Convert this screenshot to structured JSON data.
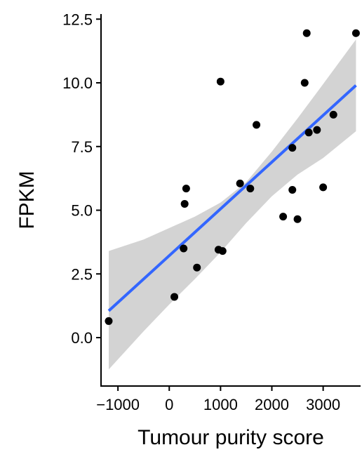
{
  "chart_data": {
    "type": "scatter",
    "title": "",
    "xlabel": "Tumour purity score",
    "ylabel": "FPKM",
    "xlim": [
      -1330,
      3730
    ],
    "ylim": [
      -1.9,
      12.7
    ],
    "x_ticks": [
      -1000,
      0,
      1000,
      2000,
      3000
    ],
    "x_tick_labels": [
      "−1000",
      "0",
      "1000",
      "2000",
      "3000"
    ],
    "y_ticks": [
      0.0,
      2.5,
      5.0,
      7.5,
      10.0,
      12.5
    ],
    "y_tick_labels": [
      "0.0",
      "2.5",
      "5.0",
      "7.5",
      "10.0",
      "12.5"
    ],
    "grid": false,
    "points": [
      {
        "x": -1180,
        "y": 0.65
      },
      {
        "x": 100,
        "y": 1.6
      },
      {
        "x": 280,
        "y": 3.5
      },
      {
        "x": 300,
        "y": 5.25
      },
      {
        "x": 330,
        "y": 5.85
      },
      {
        "x": 540,
        "y": 2.75
      },
      {
        "x": 960,
        "y": 3.45
      },
      {
        "x": 1000,
        "y": 10.05
      },
      {
        "x": 1040,
        "y": 3.4
      },
      {
        "x": 1380,
        "y": 6.05
      },
      {
        "x": 1580,
        "y": 5.85
      },
      {
        "x": 1700,
        "y": 8.35
      },
      {
        "x": 2220,
        "y": 4.75
      },
      {
        "x": 2400,
        "y": 5.8
      },
      {
        "x": 2400,
        "y": 7.45
      },
      {
        "x": 2500,
        "y": 4.65
      },
      {
        "x": 2640,
        "y": 10.0
      },
      {
        "x": 2680,
        "y": 11.95
      },
      {
        "x": 2720,
        "y": 8.05
      },
      {
        "x": 2880,
        "y": 8.15
      },
      {
        "x": 3000,
        "y": 5.9
      },
      {
        "x": 3200,
        "y": 8.75
      },
      {
        "x": 3640,
        "y": 11.95
      }
    ],
    "fit_line": {
      "x": [
        -1180,
        3640
      ],
      "y": [
        1.05,
        9.9
      ]
    },
    "confidence_band": {
      "x": [
        -1180,
        -500,
        0,
        500,
        1000,
        1500,
        2000,
        2500,
        3000,
        3640
      ],
      "lower": [
        -1.25,
        0.25,
        1.3,
        2.3,
        3.35,
        4.5,
        5.55,
        6.4,
        7.05,
        8.1
      ],
      "upper": [
        3.4,
        3.85,
        4.3,
        4.75,
        5.3,
        6.1,
        7.3,
        8.6,
        9.95,
        11.7
      ]
    },
    "colors": {
      "points": "#000000",
      "fit_line": "#3366FF",
      "band": "#D3D3D3",
      "axis": "#000000"
    }
  }
}
